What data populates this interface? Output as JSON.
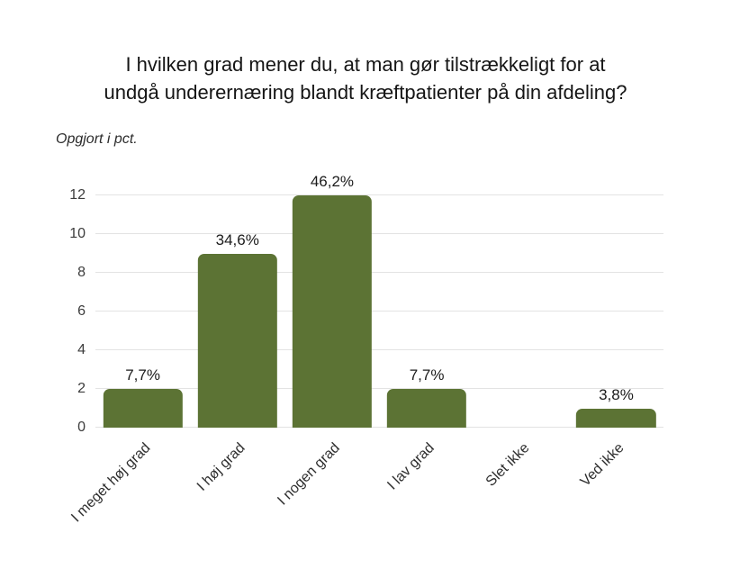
{
  "header": {
    "title_lines": [
      "I hvilken grad mener du, at man gør tilstrækkeligt for at",
      "undgå underernæring blandt kræftpatienter på din afdeling?"
    ],
    "subtitle": "Opgjort i pct."
  },
  "chart_data": {
    "type": "bar",
    "title": "I hvilken grad mener du, at man gør tilstrækkeligt for at undgå underernæring blandt kræftpatienter på din afdeling?",
    "subtitle": "Opgjort i pct.",
    "categories": [
      "I meget høj grad",
      "I høj grad",
      "I nogen grad",
      "I lav grad",
      "Slet ikke",
      "Ved ikke"
    ],
    "values": [
      2,
      9,
      12,
      2,
      0,
      1
    ],
    "value_labels": [
      "7,7%",
      "34,6%",
      "46,2%",
      "7,7%",
      "",
      "3,8%"
    ],
    "xlabel": "",
    "ylabel": "",
    "ylim": [
      0,
      12
    ],
    "yticks": [
      0,
      2,
      4,
      6,
      8,
      10,
      12
    ],
    "grid": true,
    "legend": "none",
    "bar_color": "#5c7334",
    "gridline_color": "#e3e3e3",
    "x_label_rotation_deg": -45
  }
}
